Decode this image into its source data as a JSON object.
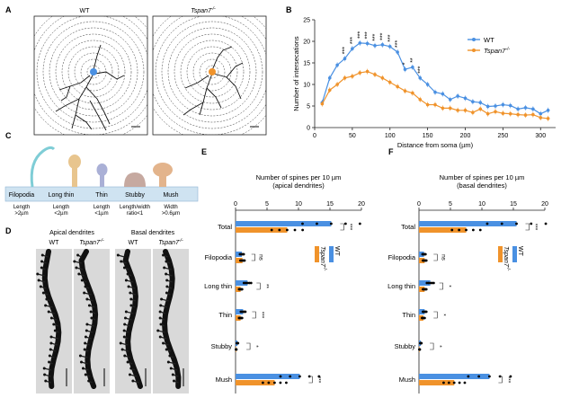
{
  "panels": {
    "A": {
      "letter": "A",
      "wt_label": "WT",
      "ko_label": "Tspan7",
      "ko_sup": "-/-"
    },
    "B": {
      "letter": "B"
    },
    "C": {
      "letter": "C",
      "categories": [
        {
          "name": "Filopodia",
          "desc": [
            "Length",
            ">2µm"
          ]
        },
        {
          "name": "Long thin",
          "desc": [
            "Length",
            "<2µm"
          ]
        },
        {
          "name": "Thin",
          "desc": [
            "Length",
            "<1µm"
          ]
        },
        {
          "name": "Stubby",
          "desc": [
            "Length/width",
            "ratio<1"
          ]
        },
        {
          "name": "Mush",
          "desc": [
            "Width",
            ">0.6µm"
          ]
        }
      ]
    },
    "D": {
      "letter": "D",
      "apical_title": "Apical dendrites",
      "basal_title": "Basal dendrites",
      "wt_label": "WT",
      "ko_label": "Tspan7",
      "ko_sup": "-/-"
    },
    "E": {
      "letter": "E"
    },
    "F": {
      "letter": "F"
    }
  },
  "colors": {
    "wt": "#4a90e2",
    "ko": "#f0932b",
    "memb": "#cfe3f1",
    "filo": "#7fcdd6",
    "lthin": "#e8c58e",
    "thin": "#aab0d6",
    "stubby": "#c6a9a0",
    "mush": "#e3b48c"
  },
  "chart_data": [
    {
      "id": "B",
      "type": "line",
      "title": "",
      "xlabel": "Distance from soma (µm)",
      "ylabel": "Number of intersecations",
      "xlim": [
        0,
        320
      ],
      "ylim": [
        0,
        25
      ],
      "xticks": [
        0,
        50,
        100,
        150,
        200,
        250,
        300
      ],
      "yticks": [
        0,
        5,
        10,
        15,
        20,
        25
      ],
      "legend_position": "top-right",
      "x": [
        10,
        20,
        30,
        40,
        50,
        60,
        70,
        80,
        90,
        100,
        110,
        120,
        130,
        140,
        150,
        160,
        170,
        180,
        190,
        200,
        210,
        220,
        230,
        240,
        250,
        260,
        270,
        280,
        290,
        300,
        310
      ],
      "series": [
        {
          "name": "WT",
          "values": [
            5.8,
            11.5,
            14.5,
            16,
            18.3,
            19.6,
            19.5,
            19,
            19.2,
            18.8,
            17.5,
            13.5,
            14,
            11.5,
            10,
            8.2,
            7.8,
            6.5,
            7.3,
            6.8,
            6,
            5.8,
            4.9,
            5,
            5.3,
            5.1,
            4.3,
            4.6,
            4.3,
            3.2,
            4
          ]
        },
        {
          "name": "Tspan7",
          "name_sup": "-/-",
          "values": [
            5.5,
            8.7,
            10,
            11.5,
            11.9,
            12.7,
            13,
            12.3,
            11.5,
            10.5,
            9.5,
            8.5,
            8,
            6.5,
            5.3,
            5.3,
            4.5,
            4.5,
            4,
            4,
            3.5,
            4.3,
            3.2,
            3.7,
            3.3,
            3.2,
            3,
            2.9,
            3,
            2.3,
            2.1
          ]
        }
      ],
      "annotations": [
        "***",
        "***",
        "***",
        "***",
        "***",
        "***",
        "***",
        "***",
        "*",
        "**",
        "***"
      ]
    },
    {
      "id": "E",
      "type": "bar",
      "title": "Number of spines per 10 µm",
      "subtitle": "(apical dendrites)",
      "xlim": [
        0,
        20
      ],
      "xticks": [
        0,
        5,
        10,
        15,
        20
      ],
      "categories": [
        "Total",
        "Filopodia",
        "Long thin",
        "Thin",
        "Stubby",
        "Mush"
      ],
      "series": [
        {
          "name": "WT",
          "values": [
            15.2,
            1.0,
            1.9,
            1.2,
            0.3,
            10.2
          ]
        },
        {
          "name": "Tspan7",
          "name_sup": "-/-",
          "values": [
            8.2,
            1.1,
            0.8,
            0.8,
            0.1,
            6.2
          ]
        }
      ],
      "significance": [
        "***",
        "ns",
        "**",
        "***",
        "*",
        "***"
      ]
    },
    {
      "id": "F",
      "type": "bar",
      "title": "Number of spines per 10 µm",
      "subtitle": "(basal dendrites)",
      "xlim": [
        0,
        20
      ],
      "xticks": [
        0,
        5,
        10,
        15,
        20
      ],
      "categories": [
        "Total",
        "Filopodia",
        "Long thin",
        "Thin",
        "Stubby",
        "Mush"
      ],
      "series": [
        {
          "name": "WT",
          "values": [
            15.5,
            0.8,
            1.8,
            0.9,
            0.3,
            11.2
          ]
        },
        {
          "name": "Tspan7",
          "name_sup": "-/-",
          "values": [
            7.5,
            0.9,
            0.9,
            0.7,
            0.1,
            5.6
          ]
        }
      ],
      "significance": [
        "***",
        "ns",
        "*",
        "*",
        "*",
        "***"
      ]
    }
  ]
}
